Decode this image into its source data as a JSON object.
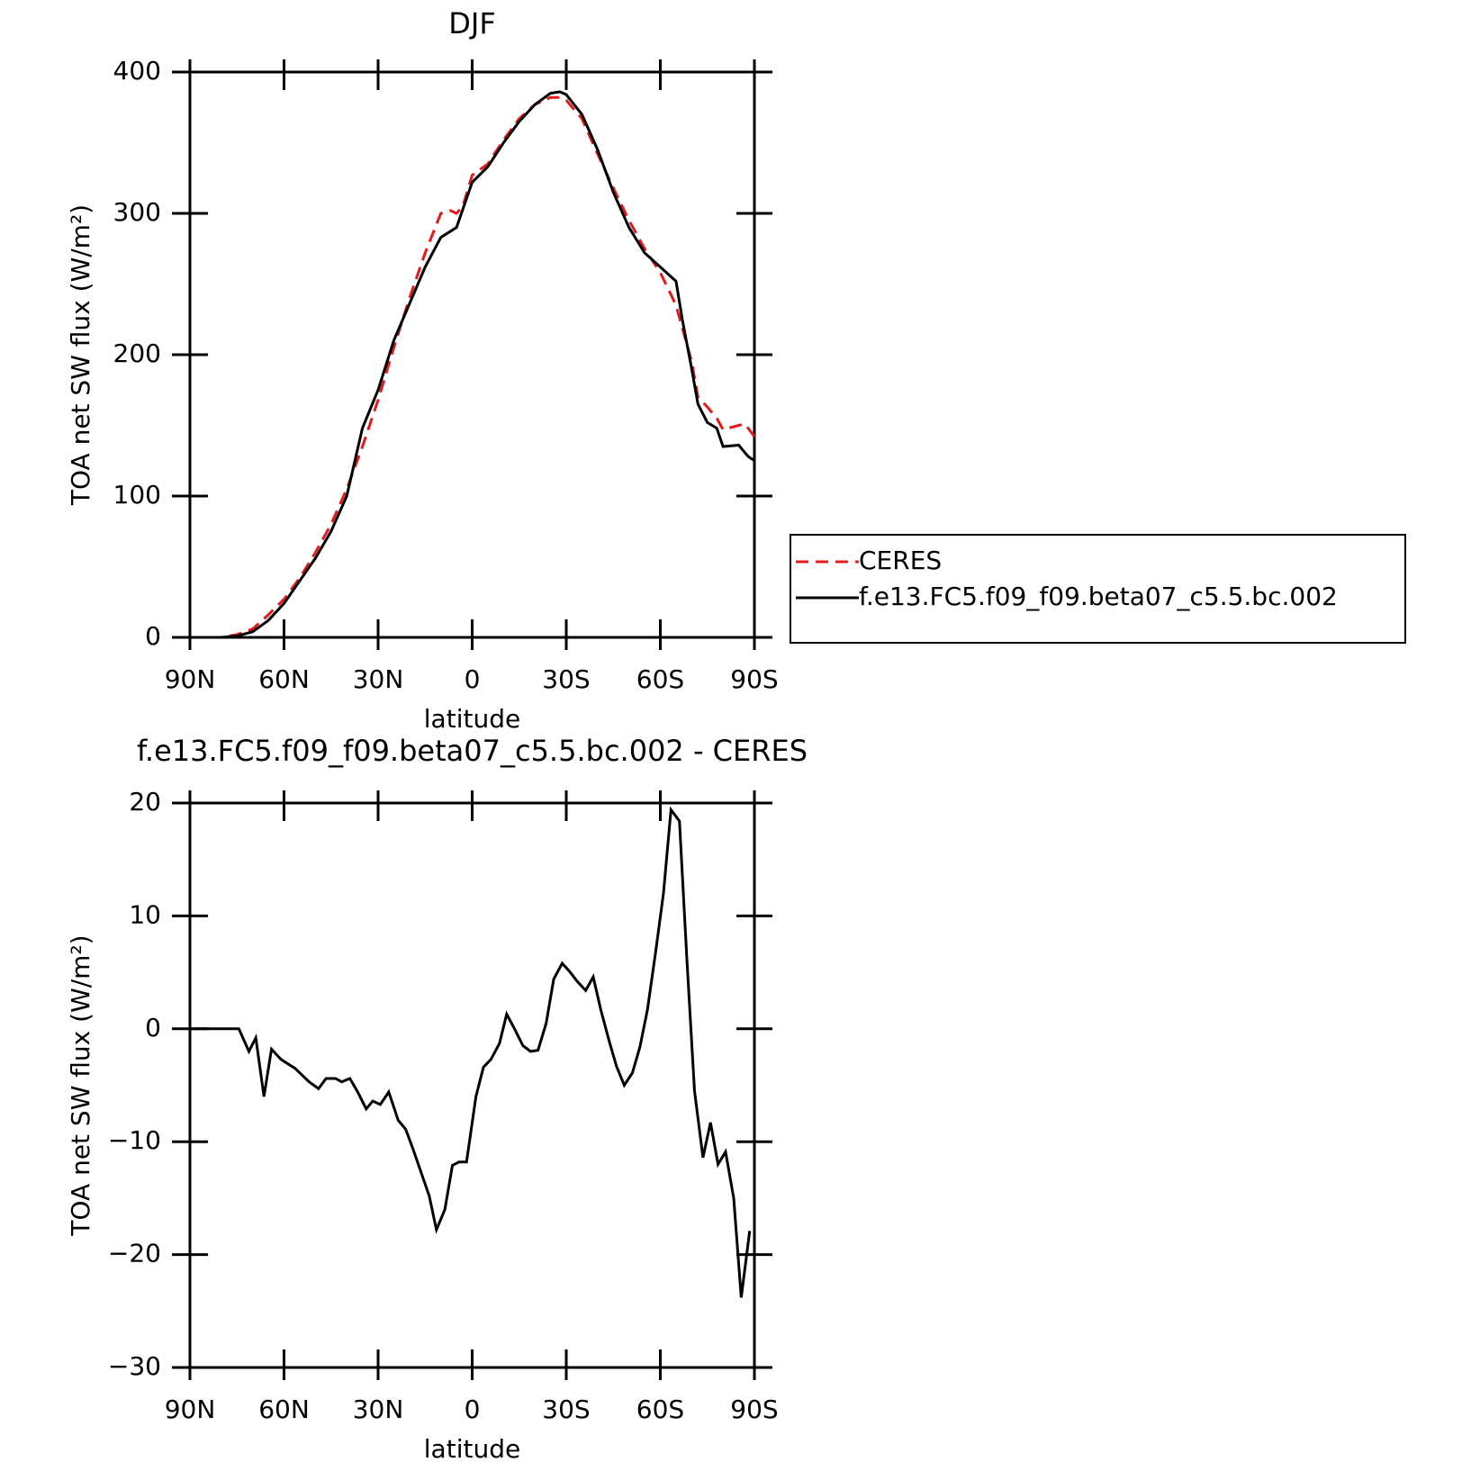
{
  "chart_data": [
    {
      "type": "line",
      "title": "DJF",
      "xlabel": "latitude",
      "ylabel": "TOA net SW flux (W/m²)",
      "xlim": [
        90,
        -90
      ],
      "xticks": [
        {
          "value": 90,
          "label": "90N"
        },
        {
          "value": 60,
          "label": "60N"
        },
        {
          "value": 30,
          "label": "30N"
        },
        0,
        {
          "value": -30,
          "label": "30S"
        },
        {
          "value": -60,
          "label": "60S"
        },
        {
          "value": -90,
          "label": "90S"
        }
      ],
      "ylim": [
        0,
        400
      ],
      "yticks": [
        0,
        100,
        200,
        300,
        400
      ],
      "legend": "right",
      "series": [
        {
          "name": "CERES",
          "color": "#e41a1c",
          "style": "dashed",
          "x": [
            90,
            80,
            75,
            70,
            65,
            60,
            55,
            50,
            45,
            40,
            35,
            30,
            25,
            20,
            15,
            10,
            7,
            5,
            3,
            0,
            -5,
            -10,
            -15,
            -20,
            -25,
            -28,
            -30,
            -35,
            -40,
            -45,
            -50,
            -55,
            -60,
            -65,
            -70,
            -72,
            -75,
            -78,
            -80,
            -85,
            -87,
            -90
          ],
          "values": [
            0,
            0,
            2,
            6,
            16,
            27,
            42,
            60,
            80,
            105,
            135,
            168,
            205,
            240,
            272,
            300,
            302,
            300,
            305,
            327,
            335,
            352,
            367,
            377,
            382,
            382,
            380,
            367,
            342,
            318,
            295,
            275,
            258,
            235,
            195,
            170,
            163,
            155,
            147,
            150,
            151,
            142
          ]
        },
        {
          "name": "f.e13.FC5.f09_f09.beta07_c5.5.bc.002",
          "color": "#000000",
          "style": "solid",
          "x": [
            90,
            80,
            75,
            70,
            65,
            60,
            55,
            50,
            45,
            40,
            35,
            30,
            25,
            20,
            15,
            10,
            5,
            0,
            -5,
            -10,
            -15,
            -20,
            -25,
            -28,
            -30,
            -35,
            -40,
            -45,
            -50,
            -55,
            -60,
            -65,
            -67,
            -70,
            -72,
            -75,
            -78,
            -80,
            -85,
            -88,
            -90
          ],
          "values": [
            0,
            0,
            1,
            4,
            12,
            24,
            40,
            56,
            75,
            100,
            148,
            175,
            210,
            236,
            262,
            283,
            290,
            322,
            333,
            350,
            365,
            377,
            385,
            386,
            384,
            370,
            345,
            315,
            290,
            272,
            262,
            252,
            225,
            190,
            165,
            152,
            148,
            135,
            136,
            128,
            125
          ]
        }
      ]
    },
    {
      "type": "line",
      "title": "f.e13.FC5.f09_f09.beta07_c5.5.bc.002 - CERES",
      "xlabel": "latitude",
      "ylabel": "TOA net SW flux (W/m²)",
      "xlim": [
        90,
        -90
      ],
      "xticks": [
        {
          "value": 90,
          "label": "90N"
        },
        {
          "value": 60,
          "label": "60N"
        },
        {
          "value": 30,
          "label": "30N"
        },
        0,
        {
          "value": -30,
          "label": "30S"
        },
        {
          "value": -60,
          "label": "60S"
        },
        {
          "value": -90,
          "label": "90S"
        }
      ],
      "ylim": [
        -30,
        20
      ],
      "yticks": [
        {
          "value": -30,
          "label": "−30"
        },
        {
          "value": -20,
          "label": "−20"
        },
        {
          "value": -10,
          "label": "−10"
        },
        0,
        10,
        20
      ],
      "series": [
        {
          "color": "#000000",
          "style": "solid",
          "x": [
            90,
            74.4,
            71.2,
            69,
            66.4,
            64,
            61,
            56.5,
            52,
            49,
            46.6,
            43.6,
            41.6,
            39,
            36.5,
            33.8,
            31.7,
            29.3,
            26.6,
            23.6,
            21.2,
            18.8,
            13.7,
            11.4,
            8.7,
            6.3,
            4.2,
            1.8,
            -1.2,
            -3.6,
            -6,
            -8.7,
            -11,
            -13.5,
            -16.2,
            -18.6,
            -21,
            -23.6,
            -26,
            -28.7,
            -31,
            -33.5,
            -36.2,
            -38.6,
            -41,
            -43.7,
            -46,
            -48.5,
            -51.1,
            -53.5,
            -55.9,
            -58.6,
            -61,
            -63.4,
            -66.1,
            -68.5,
            -70.9,
            -73.6,
            -76,
            -78.4,
            -80.8,
            -83.4,
            -85.8,
            -88.5
          ],
          "values": [
            0,
            0,
            -2,
            -0.8,
            -6,
            -1.8,
            -2.7,
            -3.5,
            -4.7,
            -5.3,
            -4.4,
            -4.4,
            -4.7,
            -4.4,
            -5.6,
            -7.1,
            -6.4,
            -6.7,
            -5.6,
            -8.1,
            -8.9,
            -10.7,
            -14.8,
            -17.8,
            -16,
            -12.1,
            -11.8,
            -11.8,
            -6,
            -3.4,
            -2.7,
            -1.3,
            1.3,
            0,
            -1.5,
            -2,
            -1.9,
            0.5,
            4.4,
            5.8,
            5.1,
            4.2,
            3.4,
            4.6,
            1.7,
            -1.1,
            -3.3,
            -5,
            -3.9,
            -1.6,
            1.7,
            7,
            12,
            19.4,
            18.4,
            6,
            -5.5,
            -11.4,
            -8.3,
            -12,
            -10.9,
            -15,
            -23.8,
            -17.9
          ]
        }
      ]
    }
  ]
}
